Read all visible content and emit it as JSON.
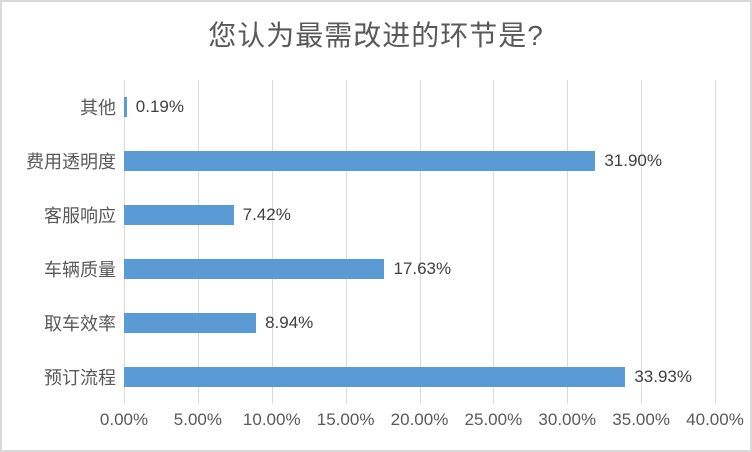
{
  "chart_data": {
    "type": "bar",
    "orientation": "horizontal",
    "title": "您认为最需改进的环节是?",
    "categories_top_to_bottom": [
      "其他",
      "费用透明度",
      "客服响应",
      "车辆质量",
      "取车效率",
      "预订流程"
    ],
    "values": [
      0.19,
      31.9,
      7.42,
      17.63,
      8.94,
      33.93
    ],
    "value_labels": [
      "0.19%",
      "31.90%",
      "7.42%",
      "17.63%",
      "8.94%",
      "33.93%"
    ],
    "x_axis": {
      "min": 0,
      "max": 40,
      "tick_step": 5,
      "tick_labels": [
        "0.00%",
        "5.00%",
        "10.00%",
        "15.00%",
        "20.00%",
        "25.00%",
        "30.00%",
        "35.00%",
        "40.00%"
      ]
    },
    "grid": true,
    "legend": false,
    "colors": {
      "bar": "#5b9bd5",
      "gridline": "#d9d9d9",
      "axis_text": "#595959",
      "value_label_text": "#404040",
      "title_text": "#595959",
      "background": "#ffffff",
      "border": "#d9d9d9"
    }
  }
}
